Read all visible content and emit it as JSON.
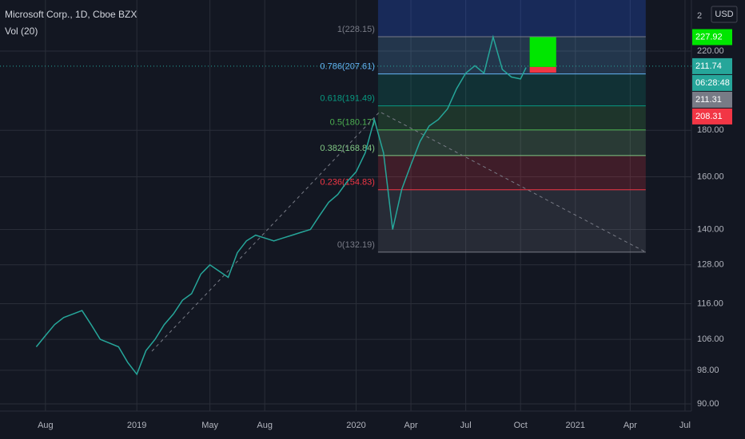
{
  "header": {
    "symbol": "Microsoft Corp., 1D, Cboe BZX",
    "indicator": "Vol (20)"
  },
  "price_axis": {
    "currency": "USD",
    "top_label": "2",
    "ticks": [
      {
        "value": 220,
        "label": "220.00"
      },
      {
        "value": 180,
        "label": "180.00"
      },
      {
        "value": 160,
        "label": "160.00"
      },
      {
        "value": 140,
        "label": "140.00"
      },
      {
        "value": 128,
        "label": "128.00"
      },
      {
        "value": 116,
        "label": "116.00"
      },
      {
        "value": 106,
        "label": "106.00"
      },
      {
        "value": 98,
        "label": "98.00"
      },
      {
        "value": 90,
        "label": "90.00"
      }
    ],
    "tags": [
      {
        "value": 227.92,
        "label": "227.92",
        "color": "#00e600"
      },
      {
        "value": 211.74,
        "label": "211.74",
        "color": "#26a69a"
      },
      {
        "value": 210.4,
        "label": "06:28:48",
        "color": "#26a69a"
      },
      {
        "value": 211.31,
        "label": "211.31",
        "color": "#787b86"
      },
      {
        "value": 208.31,
        "label": "208.31",
        "color": "#f23645"
      }
    ]
  },
  "time_axis": {
    "ticks": [
      {
        "value": 1,
        "label": "Aug"
      },
      {
        "value": 6,
        "label": "2019"
      },
      {
        "value": 10,
        "label": "May"
      },
      {
        "value": 13,
        "label": "Aug"
      },
      {
        "value": 18,
        "label": "2020"
      },
      {
        "value": 21,
        "label": "Apr"
      },
      {
        "value": 24,
        "label": "Jul"
      },
      {
        "value": 27,
        "label": "Oct"
      },
      {
        "value": 30,
        "label": "2021"
      },
      {
        "value": 33,
        "label": "Apr"
      },
      {
        "value": 36,
        "label": "Jul"
      }
    ]
  },
  "fib": {
    "start": 19.2,
    "end": 33.85,
    "levels": [
      {
        "value": 228.15,
        "label": "1(228.15)",
        "color": "#787b86"
      },
      {
        "value": 207.61,
        "label": "0.786(207.61)",
        "color": "#64b5f6"
      },
      {
        "value": 191.49,
        "label": "0.618(191.49)",
        "color": "#089981"
      },
      {
        "value": 180.17,
        "label": "0.5(180.17)",
        "color": "#4caf50"
      },
      {
        "value": 168.84,
        "label": "0.382(168.84)",
        "color": "#81c784"
      },
      {
        "value": 154.83,
        "label": "0.236(154.83)",
        "color": "#f23645"
      },
      {
        "value": 132.19,
        "label": "0(132.19)",
        "color": "#787b86"
      }
    ]
  },
  "position": {
    "start": 27.5,
    "end": 28.95,
    "entry": 211.31,
    "target": 227.92,
    "stop": 208.31
  },
  "price": {
    "x": [
      0.5,
      1,
      1.5,
      2,
      2.5,
      3,
      3.5,
      4,
      4.5,
      5,
      5.5,
      6,
      6.5,
      7,
      7.5,
      8,
      8.5,
      9,
      9.5,
      10,
      10.5,
      11,
      11.5,
      12,
      12.5,
      13,
      13.5,
      14,
      14.5,
      15,
      15.5,
      16,
      16.5,
      17,
      17.5,
      18,
      18.5,
      19,
      19.5,
      20,
      20.5,
      21,
      21.5,
      22,
      22.5,
      23,
      23.5,
      24,
      24.5,
      25,
      25.5,
      26,
      26.5,
      27,
      27.3
    ],
    "closes": [
      104,
      107,
      110,
      112,
      113,
      114,
      110,
      106,
      105,
      104,
      100,
      97,
      103,
      106,
      110,
      113,
      117,
      119,
      125,
      128,
      126,
      124,
      132,
      136,
      138,
      137,
      136,
      137,
      138,
      139,
      140,
      145,
      150,
      153,
      158,
      162,
      170,
      185,
      170,
      140,
      155,
      165,
      175,
      182,
      185,
      190,
      200,
      208,
      212,
      208,
      228,
      210,
      206,
      205,
      211
    ],
    "color": "#26a69a"
  }
}
